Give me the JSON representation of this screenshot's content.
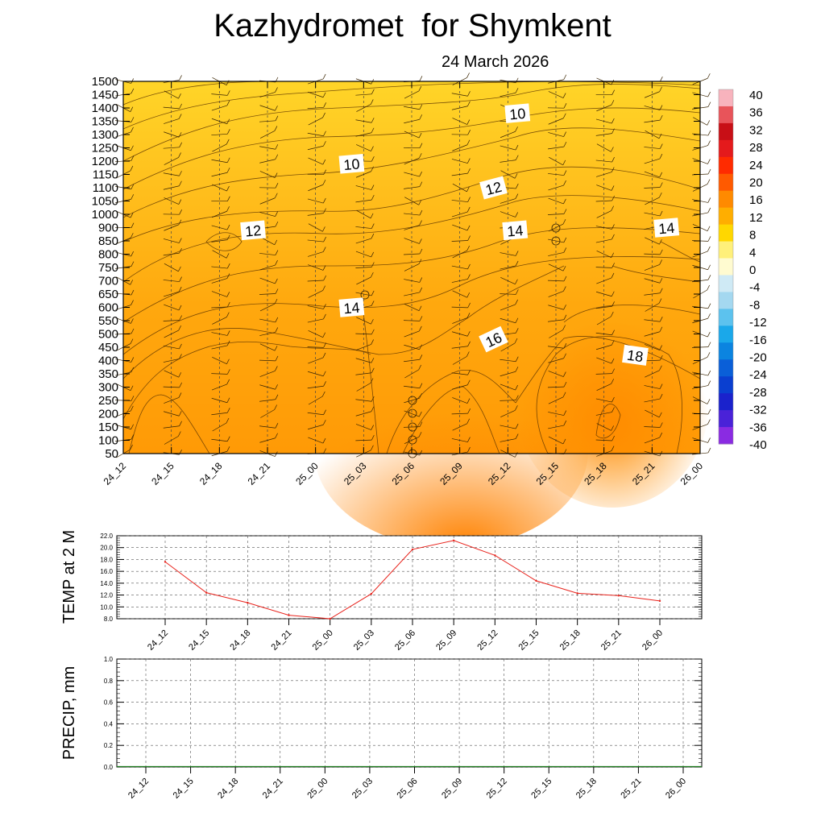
{
  "title": "Kazhydromet  for Shymkent",
  "subtitle": "24 March 2026",
  "chart_data": [
    {
      "type": "heatmap",
      "name": "vertical-section",
      "x_labels": [
        "24_12",
        "24_15",
        "24_18",
        "24_21",
        "25_00",
        "25_03",
        "25_06",
        "25_09",
        "25_12",
        "25_15",
        "25_18",
        "25_21",
        "26_00"
      ],
      "y_ticks": [
        50,
        100,
        150,
        200,
        250,
        300,
        350,
        400,
        450,
        500,
        550,
        600,
        650,
        700,
        750,
        800,
        850,
        900,
        1000,
        1050,
        1100,
        1150,
        1200,
        1250,
        1300,
        1350,
        1400,
        1450,
        1500
      ],
      "colorbar": {
        "labels": [
          "40",
          "36",
          "32",
          "28",
          "24",
          "20",
          "16",
          "12",
          "8",
          "4",
          "0",
          "-4",
          "-8",
          "-12",
          "-16",
          "-20",
          "-24",
          "-28",
          "-32",
          "-36",
          "-40"
        ],
        "colors": [
          "#f8b3bd",
          "#e8545a",
          "#c80f16",
          "#e41a1c",
          "#ff2b00",
          "#ff5a00",
          "#ff8a00",
          "#ffae00",
          "#ffd700",
          "#fff07a",
          "#fffbd0",
          "#cfeaf5",
          "#a4d8f0",
          "#5cc2ee",
          "#1aa8ea",
          "#0b84e0",
          "#0a5fd8",
          "#0a3fd0",
          "#1a22cc",
          "#4a22d8",
          "#8a2be2"
        ]
      },
      "contour_labels": [
        {
          "text": "10",
          "x": 16.4,
          "level": 1380
        },
        {
          "text": "10",
          "x": 9.5,
          "level": 1190
        },
        {
          "text": "12",
          "x": 15.4,
          "level": 1100
        },
        {
          "text": "12",
          "x": 5.4,
          "level": 890
        },
        {
          "text": "14",
          "x": 16.3,
          "level": 890
        },
        {
          "text": "14",
          "x": 22.6,
          "level": 900
        },
        {
          "text": "14",
          "x": 9.5,
          "level": 600
        },
        {
          "text": "16",
          "x": 15.4,
          "level": 480
        },
        {
          "text": "18",
          "x": 21.3,
          "level": 420
        }
      ]
    },
    {
      "type": "line",
      "name": "temperature-2m",
      "ylabel": "TEMP at 2 M",
      "categories": [
        "24_12",
        "24_15",
        "24_18",
        "24_21",
        "25_00",
        "25_03",
        "25_06",
        "25_09",
        "25_12",
        "25_15",
        "25_18",
        "25_21",
        "26_00"
      ],
      "series": [
        {
          "values": [
            17.6,
            12.4,
            10.7,
            8.6,
            8.0,
            12.2,
            19.7,
            21.2,
            18.7,
            14.4,
            12.3,
            11.9,
            11.0
          ]
        }
      ],
      "y_ticks": [
        "8.0",
        "10.0",
        "12.0",
        "14.0",
        "16.0",
        "18.0",
        "20.0",
        "22.0"
      ],
      "ylim": [
        8,
        22
      ],
      "color": "#e8231c"
    },
    {
      "type": "bar",
      "name": "precipitation",
      "ylabel": "PRECIP, mm",
      "categories": [
        "24_12",
        "24_15",
        "24_18",
        "24_21",
        "25_00",
        "25_03",
        "25_06",
        "25_09",
        "25_12",
        "25_15",
        "25_18",
        "25_21",
        "26_00"
      ],
      "series": [
        {
          "values": [
            0,
            0,
            0,
            0,
            0,
            0,
            0,
            0,
            0,
            0,
            0,
            0,
            0
          ]
        }
      ],
      "y_ticks": [
        "0.0",
        "0.2",
        "0.4",
        "0.6",
        "0.8",
        "1.0"
      ],
      "ylim": [
        0,
        1
      ],
      "color": "#1a7a1a"
    }
  ]
}
